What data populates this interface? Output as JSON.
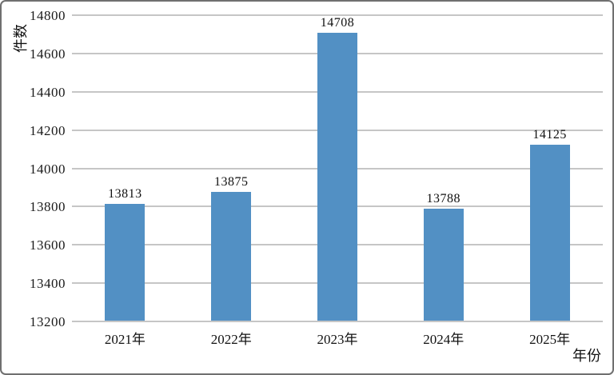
{
  "chart_data": {
    "type": "bar",
    "title": "",
    "categories": [
      "2021年",
      "2022年",
      "2023年",
      "2024年",
      "2025年"
    ],
    "values": [
      13813,
      13875,
      14708,
      13788,
      14125
    ],
    "data_labels": [
      "13813",
      "13875",
      "14708",
      "13788",
      "14125"
    ],
    "xlabel": "年份",
    "ylabel": "件数",
    "ylim": [
      13200,
      14800
    ],
    "ytick_step": 200,
    "yticks": [
      13200,
      13400,
      13600,
      13800,
      14000,
      14200,
      14400,
      14600,
      14800
    ],
    "grid": true,
    "legend_position": "none",
    "bar_color": "#5290c4",
    "gridline_color": "#c6c6c6",
    "text_color": "#111111"
  }
}
